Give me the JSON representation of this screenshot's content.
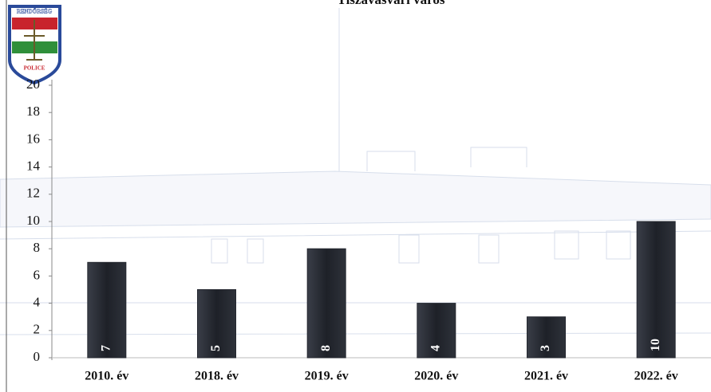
{
  "chart_data": {
    "type": "bar",
    "title": "Tiszavasvári város",
    "categories": [
      "2010. év",
      "2018. év",
      "2019. év",
      "2020. év",
      "2021. év",
      "2022. év"
    ],
    "values": [
      7,
      5,
      8,
      4,
      3,
      10
    ],
    "color": "#252830",
    "ylim": [
      0,
      20
    ],
    "yticks": [
      0,
      2,
      4,
      6,
      8,
      10,
      12,
      14,
      16,
      18,
      20
    ],
    "grid": false
  },
  "logo": {
    "top": "RENDŐRSÉG",
    "bottom": "POLICE"
  }
}
